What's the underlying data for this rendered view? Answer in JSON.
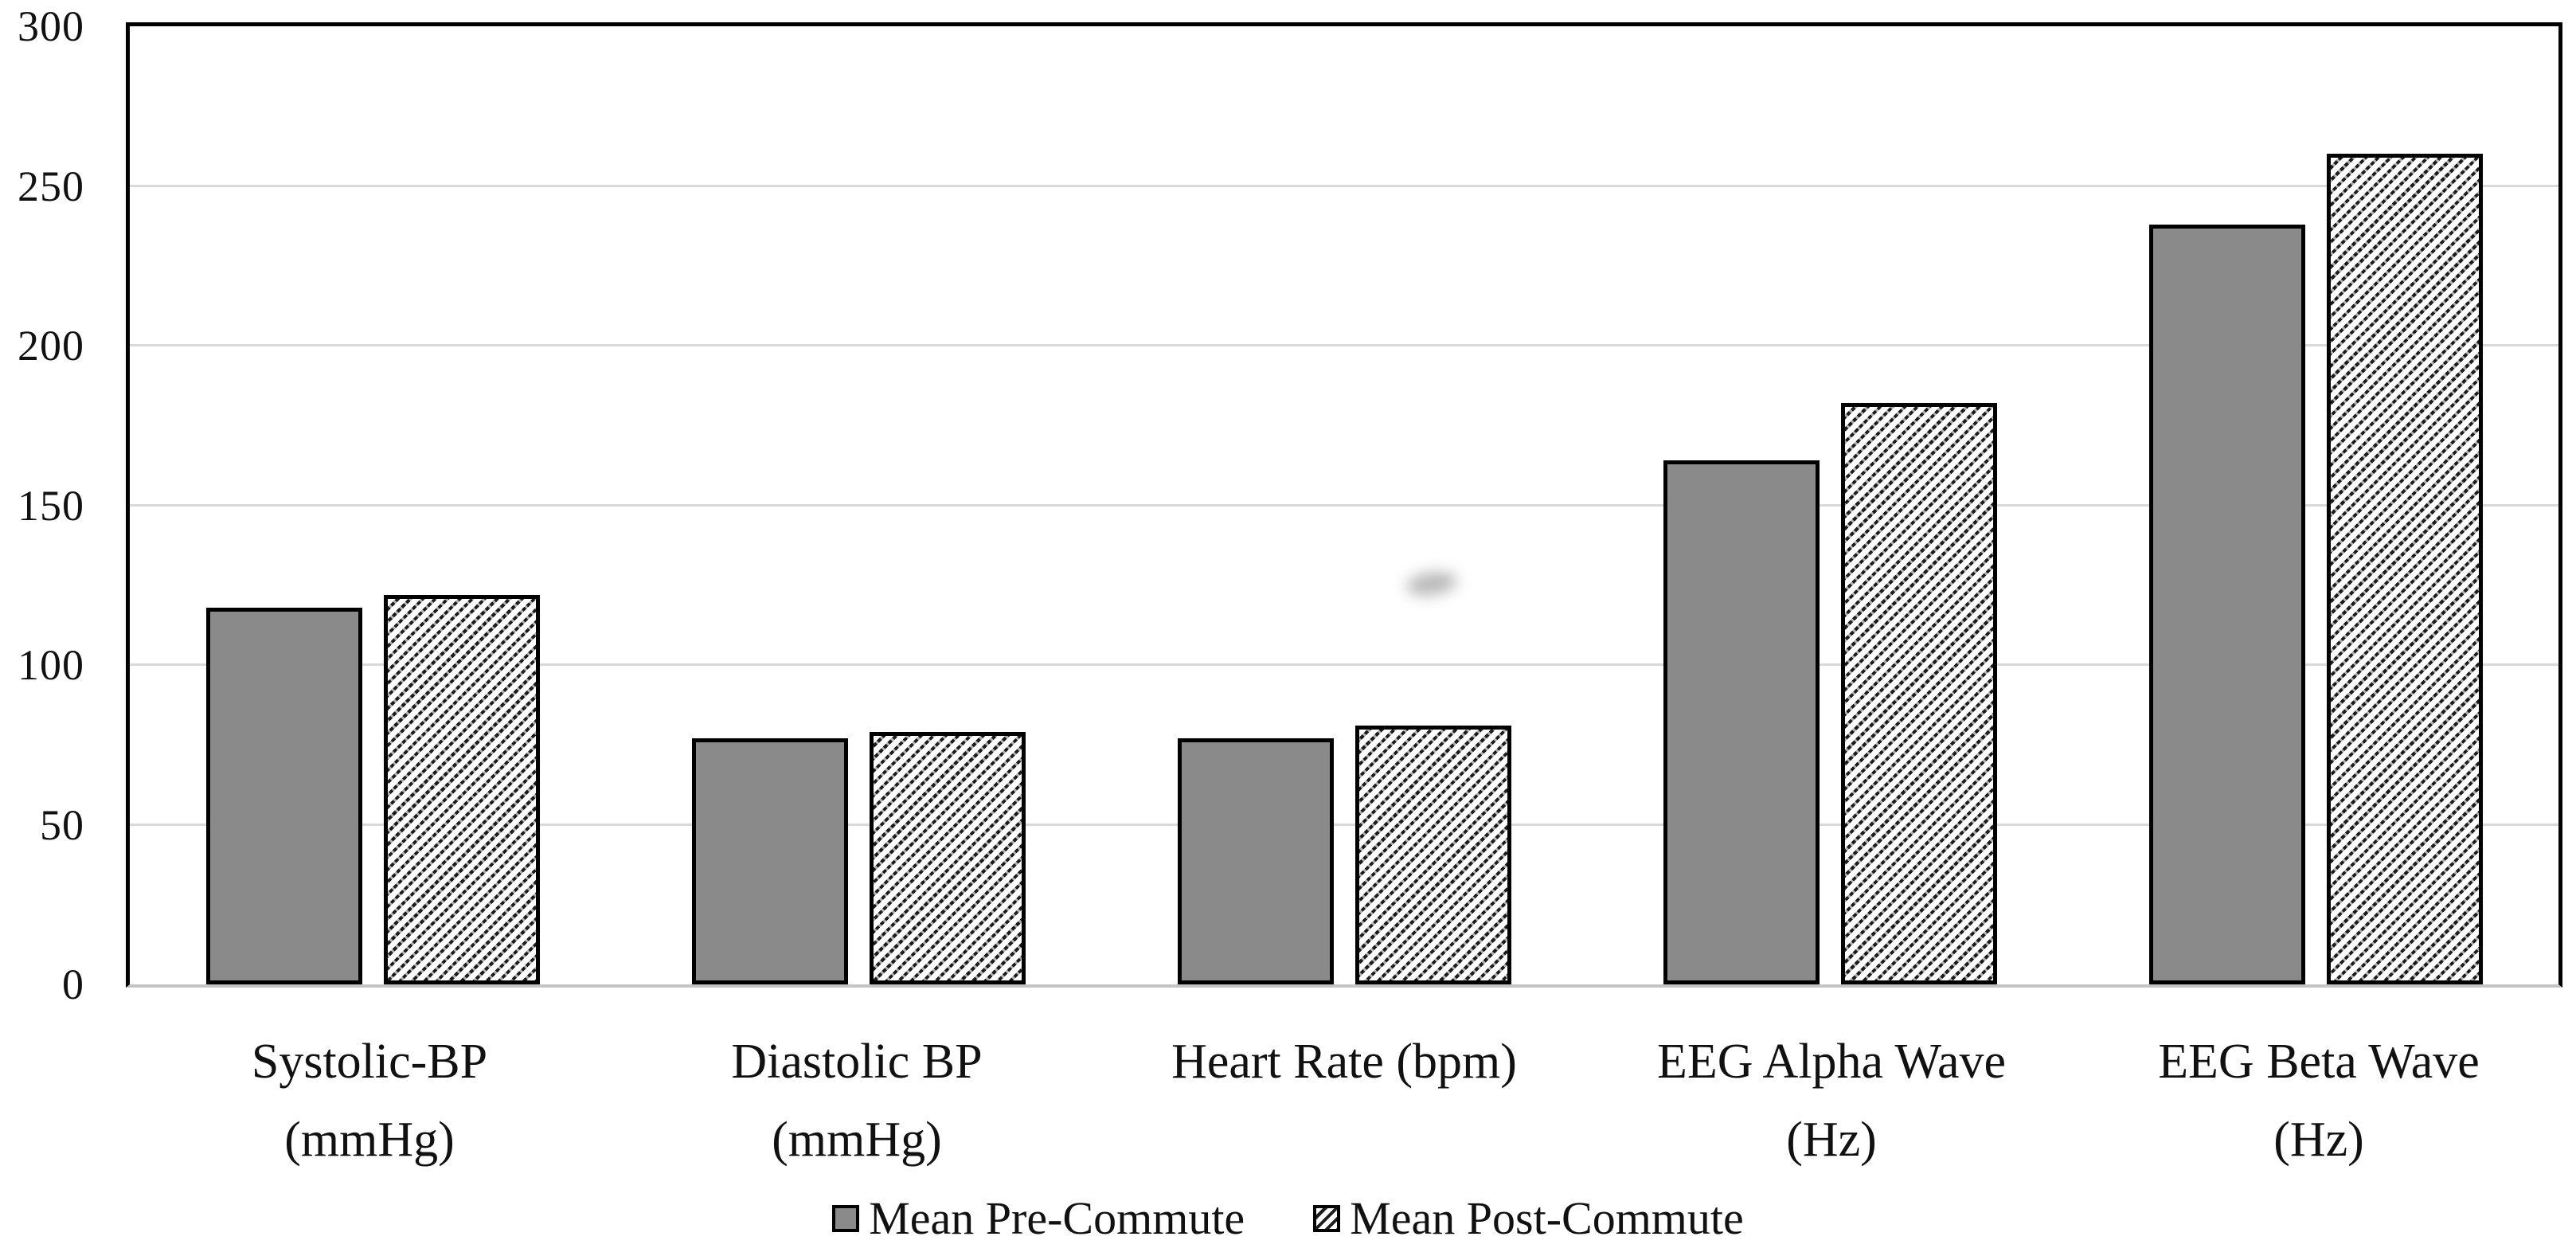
{
  "chart_data": {
    "type": "bar",
    "title": "",
    "xlabel": "",
    "ylabel": "",
    "categories": [
      "Systolic-BP (mmHg)",
      "Diastolic BP (mmHg)",
      "Heart Rate (bpm)",
      "EEG Alpha Wave (Hz)",
      "EEG Beta Wave (Hz)"
    ],
    "category_label_lines": [
      [
        "Systolic-BP",
        "(mmHg)"
      ],
      [
        "Diastolic BP",
        "(mmHg)"
      ],
      [
        "Heart Rate (bpm)"
      ],
      [
        "EEG Alpha Wave",
        "(Hz)"
      ],
      [
        "EEG Beta Wave",
        "(Hz)"
      ]
    ],
    "series": [
      {
        "name": "Mean Pre-Commute",
        "pattern": "solid",
        "values": [
          118,
          77,
          77,
          164,
          238
        ]
      },
      {
        "name": "Mean Post-Commute",
        "pattern": "diagonal-hatch",
        "values": [
          122,
          79,
          81,
          182,
          260
        ]
      }
    ],
    "ylim": [
      0,
      300
    ],
    "yticks": [
      0,
      50,
      100,
      150,
      200,
      250,
      300
    ],
    "grid": true,
    "legend_position": "bottom"
  },
  "legend": {
    "items": [
      {
        "label": "Mean Pre-Commute",
        "swatch": "solid-gray"
      },
      {
        "label": "Mean Post-Commute",
        "swatch": "diagonal-hatch"
      }
    ]
  },
  "colors": {
    "bar_fill_gray": "#8a8a8a",
    "bar_border": "#000000",
    "hatch_line": "#1c1c1c",
    "gridline": "#d9d9d9",
    "axis_line": "#000000",
    "baseline": "#c4c4c4",
    "text": "#111111",
    "background": "#ffffff"
  },
  "artifacts": {
    "smudge_note": "faint gray smudge above Heart Rate post-commute bar"
  }
}
